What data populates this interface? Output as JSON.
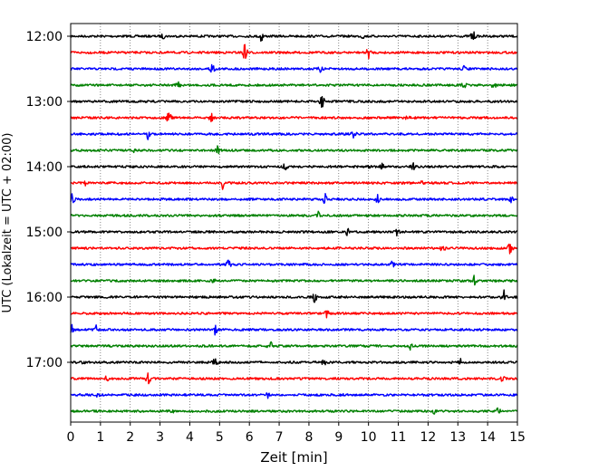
{
  "chart_data": {
    "type": "line",
    "title": "",
    "xlabel": "Zeit  [min]",
    "ylabel": "UTC (Lokalzeit = UTC + 02:00)",
    "xlim": [
      0,
      15
    ],
    "x_ticks": [
      "0",
      "1",
      "2",
      "3",
      "4",
      "5",
      "6",
      "7",
      "8",
      "9",
      "10",
      "11",
      "12",
      "13",
      "14",
      "15"
    ],
    "y_tick_labels": [
      "12:00",
      "13:00",
      "14:00",
      "15:00",
      "16:00",
      "17:00"
    ],
    "trace_interval_min": 15,
    "row_colors": [
      "#000000",
      "#ff0000",
      "#0000ff",
      "#008000"
    ],
    "grid": "vertical dotted lines at each minute",
    "traces": [
      {
        "start": "12:00",
        "color": "#000000",
        "spikes": [
          [
            6.4,
            9
          ],
          [
            13.5,
            9
          ],
          [
            3.1,
            4
          ],
          [
            9.8,
            4
          ]
        ]
      },
      {
        "start": "12:15",
        "color": "#ff0000",
        "spikes": [
          [
            5.85,
            12
          ],
          [
            10.0,
            8
          ]
        ]
      },
      {
        "start": "12:30",
        "color": "#0000ff",
        "spikes": [
          [
            4.75,
            10
          ],
          [
            8.4,
            6
          ],
          [
            13.2,
            5
          ]
        ]
      },
      {
        "start": "12:45",
        "color": "#008000",
        "spikes": [
          [
            3.6,
            6
          ],
          [
            13.2,
            7
          ],
          [
            14.2,
            7
          ]
        ]
      },
      {
        "start": "13:00",
        "color": "#000000",
        "spikes": [
          [
            8.45,
            10
          ]
        ]
      },
      {
        "start": "13:15",
        "color": "#ff0000",
        "spikes": [
          [
            3.3,
            9
          ],
          [
            4.7,
            8
          ],
          [
            11.3,
            5
          ]
        ]
      },
      {
        "start": "13:30",
        "color": "#0000ff",
        "spikes": [
          [
            2.6,
            7
          ],
          [
            9.5,
            7
          ]
        ]
      },
      {
        "start": "13:45",
        "color": "#008000",
        "spikes": [
          [
            4.95,
            8
          ],
          [
            2.1,
            4
          ]
        ]
      },
      {
        "start": "14:00",
        "color": "#000000",
        "spikes": [
          [
            7.2,
            6
          ],
          [
            10.0,
            5
          ],
          [
            10.45,
            5
          ],
          [
            11.5,
            5
          ]
        ]
      },
      {
        "start": "14:15",
        "color": "#ff0000",
        "spikes": [
          [
            5.1,
            8
          ],
          [
            0.5,
            5
          ],
          [
            11.8,
            4
          ]
        ]
      },
      {
        "start": "14:30",
        "color": "#0000ff",
        "spikes": [
          [
            8.55,
            8
          ],
          [
            10.3,
            6
          ],
          [
            0.05,
            8
          ],
          [
            14.8,
            5
          ]
        ]
      },
      {
        "start": "14:45",
        "color": "#008000",
        "spikes": [
          [
            8.3,
            6
          ]
        ]
      },
      {
        "start": "15:00",
        "color": "#000000",
        "spikes": [
          [
            10.95,
            7
          ],
          [
            9.3,
            6
          ]
        ]
      },
      {
        "start": "15:15",
        "color": "#ff0000",
        "spikes": [
          [
            12.5,
            7
          ],
          [
            14.75,
            8
          ]
        ]
      },
      {
        "start": "15:30",
        "color": "#0000ff",
        "spikes": [
          [
            5.3,
            7
          ],
          [
            10.8,
            5
          ]
        ]
      },
      {
        "start": "15:45",
        "color": "#008000",
        "spikes": [
          [
            13.55,
            7
          ],
          [
            4.8,
            4
          ]
        ]
      },
      {
        "start": "16:00",
        "color": "#000000",
        "spikes": [
          [
            8.2,
            8
          ],
          [
            14.55,
            8
          ]
        ]
      },
      {
        "start": "16:15",
        "color": "#ff0000",
        "spikes": [
          [
            8.6,
            6
          ]
        ]
      },
      {
        "start": "16:30",
        "color": "#0000ff",
        "spikes": [
          [
            0.85,
            7
          ],
          [
            4.85,
            7
          ],
          [
            0.05,
            7
          ]
        ]
      },
      {
        "start": "16:45",
        "color": "#008000",
        "spikes": [
          [
            6.7,
            7
          ],
          [
            11.4,
            5
          ]
        ]
      },
      {
        "start": "17:00",
        "color": "#000000",
        "spikes": [
          [
            4.85,
            8
          ],
          [
            8.5,
            6
          ],
          [
            13.1,
            5
          ],
          [
            0.4,
            5
          ]
        ]
      },
      {
        "start": "17:15",
        "color": "#ff0000",
        "spikes": [
          [
            2.6,
            8
          ],
          [
            1.2,
            5
          ],
          [
            14.5,
            5
          ]
        ]
      },
      {
        "start": "17:30",
        "color": "#0000ff",
        "spikes": [
          [
            6.65,
            6
          ],
          [
            0.9,
            4
          ],
          [
            9.1,
            4
          ]
        ]
      },
      {
        "start": "17:45",
        "color": "#008000",
        "spikes": [
          [
            14.35,
            7
          ],
          [
            3.4,
            5
          ],
          [
            12.2,
            4
          ]
        ]
      }
    ]
  }
}
